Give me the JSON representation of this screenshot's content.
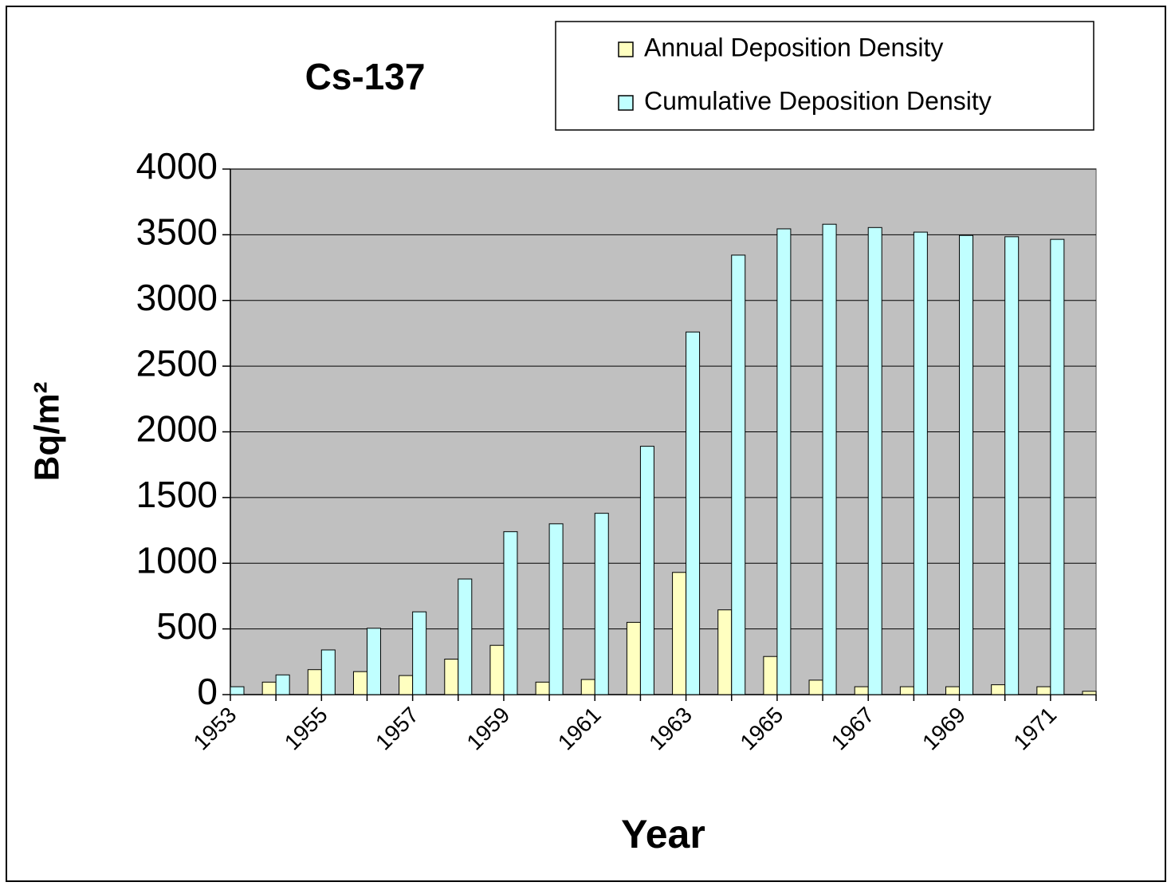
{
  "chart_data": {
    "type": "bar",
    "title": "Cs-137",
    "x_label": "Year",
    "y_label": "Bq/m²",
    "categories": [
      "1953",
      null,
      "1955",
      null,
      "1957",
      null,
      "1959",
      null,
      "1961",
      null,
      "1963",
      null,
      "1965",
      null,
      "1967",
      null,
      "1969",
      null,
      "1971",
      null
    ],
    "series": [
      {
        "name": "Annual Deposition Density",
        "color": "#ffffc0",
        "values": [
          null,
          95,
          190,
          175,
          145,
          270,
          375,
          95,
          115,
          550,
          930,
          645,
          290,
          110,
          60,
          60,
          60,
          75,
          60,
          25
        ]
      },
      {
        "name": "Cumulative Deposition Density",
        "color": "#c0ffff",
        "values": [
          60,
          150,
          340,
          505,
          630,
          880,
          1240,
          1300,
          1380,
          1890,
          2760,
          3345,
          3545,
          3580,
          3555,
          3520,
          3495,
          3485,
          3465,
          null
        ]
      }
    ],
    "ylim": [
      0,
      4000
    ],
    "yticks": [
      0,
      500,
      1000,
      1500,
      2000,
      2500,
      3000,
      3500,
      4000
    ],
    "grid": true,
    "plot_background": "#c0c0c0",
    "legend_position": "top-right"
  }
}
